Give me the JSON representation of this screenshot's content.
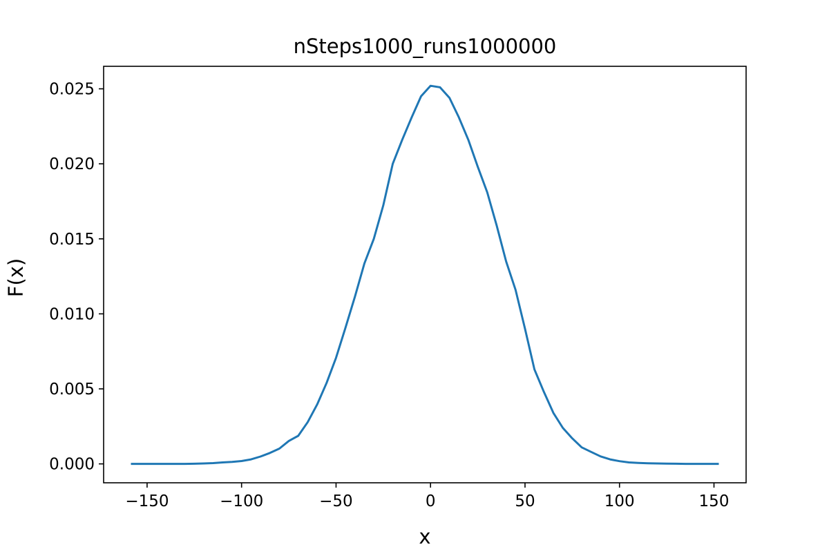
{
  "chart_data": {
    "type": "line",
    "title": "nSteps1000_runs1000000",
    "xlabel": "x",
    "ylabel": "F(x)",
    "xlim": [
      -173,
      167
    ],
    "ylim": [
      -0.00126,
      0.0265
    ],
    "xticks": [
      -150,
      -100,
      -50,
      0,
      50,
      100,
      150
    ],
    "xtick_labels": [
      "−150",
      "−100",
      "−50",
      "0",
      "50",
      "100",
      "150"
    ],
    "yticks": [
      0.0,
      0.005,
      0.01,
      0.015,
      0.02,
      0.025
    ],
    "ytick_labels": [
      "0.000",
      "0.005",
      "0.010",
      "0.015",
      "0.020",
      "0.025"
    ],
    "grid": false,
    "legend": "none",
    "color": "#1f77b4",
    "series": [
      {
        "x": [
          -158,
          -150,
          -140,
          -130,
          -125,
          -120,
          -115,
          -110,
          -105,
          -100,
          -95,
          -90,
          -85,
          -80,
          -75,
          -70,
          -65,
          -60,
          -55,
          -50,
          -45,
          -40,
          -35,
          -30,
          -25,
          -20,
          -15,
          -10,
          -5,
          0,
          5,
          10,
          15,
          20,
          25,
          30,
          35,
          40,
          45,
          50,
          55,
          60,
          65,
          70,
          75,
          80,
          85,
          90,
          95,
          100,
          105,
          110,
          115,
          120,
          125,
          130,
          135,
          140,
          145,
          152
        ],
        "y": [
          0.0,
          0.0,
          0.0,
          0.0,
          1e-05,
          3e-05,
          5e-05,
          0.0001,
          0.00013,
          0.00019,
          0.0003,
          0.00049,
          0.00073,
          0.00102,
          0.00153,
          0.00187,
          0.00278,
          0.00396,
          0.0054,
          0.00707,
          0.00908,
          0.01115,
          0.01336,
          0.015,
          0.01723,
          0.02,
          0.0216,
          0.0231,
          0.0245,
          0.0252,
          0.0251,
          0.0244,
          0.0231,
          0.0216,
          0.0198,
          0.0181,
          0.0159,
          0.0135,
          0.0116,
          0.009,
          0.0063,
          0.0048,
          0.0034,
          0.0024,
          0.0017,
          0.0011,
          0.0008,
          0.0005,
          0.0003,
          0.00018,
          0.0001,
          6e-05,
          4e-05,
          3e-05,
          2e-05,
          1e-05,
          0.0,
          0.0,
          0.0,
          0.0
        ]
      }
    ]
  }
}
